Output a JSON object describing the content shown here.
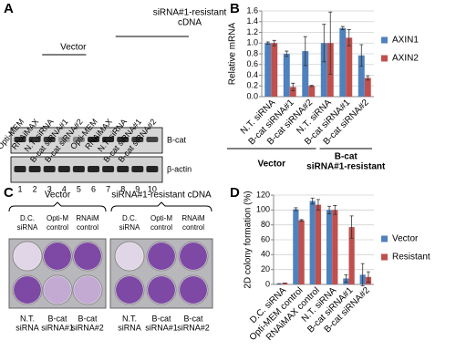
{
  "panels": {
    "a": {
      "letter": "A",
      "lanes": [
        "Opti-MEM",
        "RNAiMAX",
        "N.T. siRNA",
        "B-cat siRNA#1",
        "B-cat siRNA#2",
        "Opti-MEM",
        "RNAiMAX",
        "N.T. siRNA",
        "B-cat siRNA#1",
        "B-cat siRNA#2"
      ],
      "group_vector": "Vector",
      "group_resistant": [
        "siRNA#1-resistant",
        "cDNA"
      ],
      "bands": [
        "B-cat",
        "β-actin"
      ],
      "lane_numbers": [
        "1",
        "2",
        "3",
        "4",
        "5",
        "6",
        "7",
        "8",
        "9",
        "10"
      ]
    },
    "c": {
      "letter": "C",
      "groups": [
        "Vector",
        "siRNA#1-resistant cDNA"
      ],
      "top_labels": [
        [
          "D.C.",
          "siRNA"
        ],
        [
          "Opti-M",
          "control"
        ],
        [
          "RNAiM",
          "control"
        ]
      ],
      "bottom_labels": [
        [
          "N.T.",
          "siRNA"
        ],
        [
          "B-cat",
          "siRNA#1"
        ],
        [
          "B-cat",
          "siRNA#2"
        ]
      ]
    }
  },
  "chart_data": [
    {
      "type": "bar",
      "panel_label": "B",
      "ylabel": "Relative mRNA",
      "categories": [
        "N.T. siRNA",
        "B-cat siRNA#1",
        "B-cat siRNA#2",
        "N.T. siRNA",
        "B-cat siRNA#1",
        "B-cat siRNA#2"
      ],
      "series": [
        {
          "name": "AXIN1",
          "color": "#4f81bd",
          "values": [
            1.0,
            0.8,
            0.85,
            1.0,
            1.28,
            0.77
          ],
          "errors": [
            0.02,
            0.05,
            0.27,
            0.35,
            0.03,
            0.2
          ]
        },
        {
          "name": "AXIN2",
          "color": "#c0504d",
          "values": [
            1.0,
            0.18,
            0.2,
            1.0,
            1.1,
            0.35
          ],
          "errors": [
            0.05,
            0.07,
            0.01,
            0.58,
            0.15,
            0.04
          ]
        }
      ],
      "ylim": [
        0,
        1.6
      ],
      "yticks": [
        {
          "value": 0,
          "label": "0.0"
        },
        {
          "value": 0.2,
          "label": "0.2"
        },
        {
          "value": 0.4,
          "label": "0.4"
        },
        {
          "value": 0.6,
          "label": "0.6"
        },
        {
          "value": 0.8,
          "label": "0.8"
        },
        {
          "value": 1.0,
          "label": "1.0"
        },
        {
          "value": 1.2,
          "label": "1.2"
        },
        {
          "value": 1.4,
          "label": "1.4"
        },
        {
          "value": 1.6,
          "label": "1.6"
        }
      ],
      "grid": true,
      "groups": [
        {
          "label": [
            "Vector"
          ],
          "span": [
            0,
            2
          ]
        },
        {
          "label": [
            "B-cat",
            "siRNA#1-resistant"
          ],
          "span": [
            3,
            5
          ]
        }
      ]
    },
    {
      "type": "bar",
      "panel_label": "D",
      "ylabel": "2D colony formation (%)",
      "categories": [
        "D.C. siRNA",
        "Opti-MEM control",
        "RNAiMAX control",
        "N.T. siRNA",
        "B-cat siRNA#1",
        "B-cat siRNA#2"
      ],
      "series": [
        {
          "name": "Vector",
          "color": "#4f81bd",
          "values": [
            1,
            101,
            112,
            100,
            8,
            13
          ],
          "errors": [
            0,
            2,
            4,
            5,
            5,
            15
          ]
        },
        {
          "name": "Resistant",
          "color": "#c0504d",
          "values": [
            2,
            86,
            107,
            100,
            77,
            10
          ],
          "errors": [
            0,
            1,
            7,
            6,
            15,
            7
          ]
        }
      ],
      "ylim": [
        0,
        120
      ],
      "yticks": [
        0,
        20,
        40,
        60,
        80,
        100,
        120
      ],
      "grid": true
    }
  ]
}
